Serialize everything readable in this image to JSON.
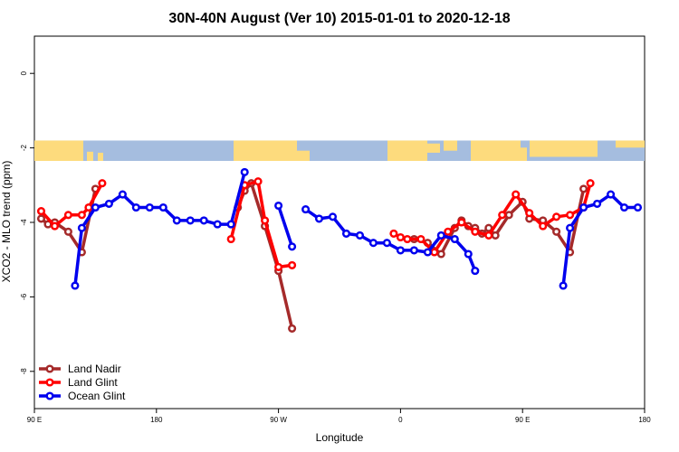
{
  "chart_data": {
    "type": "line",
    "title": "30N-40N August (Ver 10)   2015-01-01 to 2020-12-18",
    "xlabel": "Longitude",
    "ylabel": "XCO2 - MLO trend (ppm)",
    "xlim": [
      90,
      540
    ],
    "ylim": [
      -9,
      1
    ],
    "x_ticks": [
      {
        "value": 90,
        "label": "90 E"
      },
      {
        "value": 180,
        "label": "180"
      },
      {
        "value": 270,
        "label": "90 W"
      },
      {
        "value": 360,
        "label": "0"
      },
      {
        "value": 450,
        "label": "90 E"
      },
      {
        "value": 540,
        "label": "180"
      }
    ],
    "y_ticks": [
      {
        "value": 0,
        "label": "0"
      },
      {
        "value": -2,
        "label": "-2"
      },
      {
        "value": -4,
        "label": "-4"
      },
      {
        "value": -6,
        "label": "-6"
      },
      {
        "value": -8,
        "label": "-8"
      }
    ],
    "map_band": {
      "y_top": -1.8,
      "y_bottom": -2.35,
      "ocean_color": "#a5bddf",
      "land_color": "#fddb7d"
    },
    "legend_position": "bottom-left",
    "series": [
      {
        "name": "Land Nadir",
        "color": "#a52a2a",
        "segments": [
          [
            [
              95,
              -3.9
            ],
            [
              100,
              -4.05
            ],
            [
              105,
              -4.0
            ],
            [
              115,
              -4.25
            ],
            [
              125,
              -4.8
            ],
            [
              135,
              -3.1
            ]
          ],
          [
            [
              240,
              -3.6
            ],
            [
              245,
              -3.15
            ],
            [
              250,
              -2.95
            ],
            [
              260,
              -4.1
            ],
            [
              270,
              -5.3
            ],
            [
              280,
              -6.85
            ]
          ],
          [
            [
              370,
              -4.45
            ],
            [
              380,
              -4.55
            ],
            [
              390,
              -4.85
            ],
            [
              400,
              -4.15
            ],
            [
              405,
              -3.95
            ],
            [
              410,
              -4.1
            ],
            [
              415,
              -4.15
            ],
            [
              420,
              -4.3
            ],
            [
              425,
              -4.15
            ],
            [
              430,
              -4.35
            ],
            [
              440,
              -3.8
            ],
            [
              450,
              -3.45
            ],
            [
              455,
              -3.9
            ],
            [
              465,
              -3.95
            ],
            [
              475,
              -4.25
            ],
            [
              485,
              -4.8
            ],
            [
              495,
              -3.1
            ]
          ]
        ]
      },
      {
        "name": "Land Glint",
        "color": "#ff0000",
        "segments": [
          [
            [
              95,
              -3.7
            ],
            [
              105,
              -4.1
            ],
            [
              115,
              -3.8
            ],
            [
              125,
              -3.8
            ],
            [
              130,
              -3.6
            ],
            [
              140,
              -2.95
            ]
          ],
          [
            [
              235,
              -4.45
            ],
            [
              245,
              -3.0
            ],
            [
              255,
              -2.9
            ],
            [
              260,
              -3.95
            ],
            [
              270,
              -5.2
            ],
            [
              280,
              -5.15
            ]
          ],
          [
            [
              355,
              -4.3
            ],
            [
              360,
              -4.4
            ],
            [
              365,
              -4.45
            ],
            [
              375,
              -4.45
            ],
            [
              385,
              -4.8
            ],
            [
              395,
              -4.25
            ],
            [
              405,
              -4.0
            ],
            [
              415,
              -4.25
            ],
            [
              425,
              -4.35
            ],
            [
              435,
              -3.8
            ],
            [
              445,
              -3.25
            ],
            [
              455,
              -3.75
            ],
            [
              465,
              -4.1
            ],
            [
              475,
              -3.85
            ],
            [
              485,
              -3.8
            ],
            [
              495,
              -3.6
            ],
            [
              500,
              -2.95
            ]
          ]
        ]
      },
      {
        "name": "Ocean Glint",
        "color": "#0000ee",
        "segments": [
          [
            [
              120,
              -5.7
            ],
            [
              125,
              -4.15
            ],
            [
              135,
              -3.6
            ],
            [
              145,
              -3.5
            ],
            [
              155,
              -3.25
            ],
            [
              165,
              -3.6
            ],
            [
              175,
              -3.6
            ],
            [
              185,
              -3.6
            ],
            [
              195,
              -3.95
            ],
            [
              205,
              -3.95
            ],
            [
              215,
              -3.95
            ],
            [
              225,
              -4.05
            ],
            [
              235,
              -4.05
            ],
            [
              245,
              -2.65
            ]
          ],
          [
            [
              270,
              -3.55
            ],
            [
              280,
              -4.65
            ]
          ],
          [
            [
              290,
              -3.65
            ],
            [
              300,
              -3.9
            ],
            [
              310,
              -3.85
            ],
            [
              320,
              -4.3
            ],
            [
              330,
              -4.35
            ],
            [
              340,
              -4.55
            ],
            [
              350,
              -4.55
            ],
            [
              360,
              -4.75
            ],
            [
              370,
              -4.75
            ],
            [
              380,
              -4.8
            ],
            [
              390,
              -4.35
            ],
            [
              400,
              -4.45
            ],
            [
              410,
              -4.85
            ],
            [
              415,
              -5.3
            ]
          ],
          [
            [
              480,
              -5.7
            ],
            [
              485,
              -4.15
            ],
            [
              495,
              -3.6
            ],
            [
              505,
              -3.5
            ],
            [
              515,
              -3.25
            ],
            [
              525,
              -3.6
            ],
            [
              535,
              -3.6
            ]
          ]
        ]
      }
    ]
  }
}
